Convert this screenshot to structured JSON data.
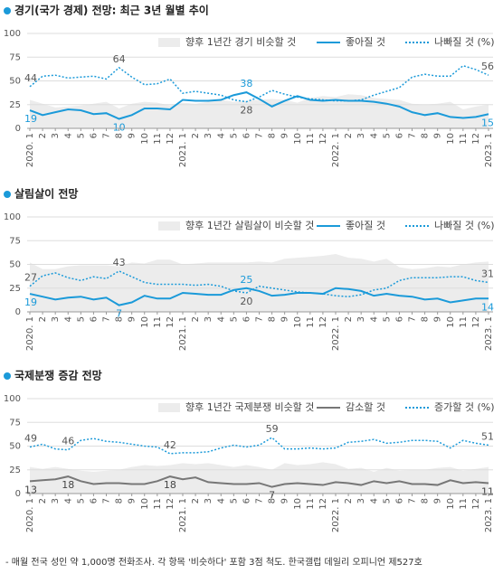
{
  "chart_data": [
    {
      "type": "line",
      "title": "경기(국가 경제) 전망:  최근 3년 월별 추이",
      "categories": [
        "2020. 1",
        "2",
        "3",
        "4",
        "5",
        "6",
        "7",
        "8",
        "9",
        "10",
        "11",
        "12",
        "2021. 1",
        "2",
        "3",
        "4",
        "5",
        "6",
        "7",
        "8",
        "9",
        "10",
        "11",
        "12",
        "2022. 1",
        "2",
        "3",
        "4",
        "5",
        "6",
        "7",
        "8",
        "9",
        "10",
        "11",
        "12",
        "2023. 1"
      ],
      "series": [
        {
          "name": "향후 1년간 경기 비슷할 것",
          "style": "area",
          "color": "#ececec",
          "values": [
            30,
            26,
            22,
            23,
            24,
            26,
            28,
            21,
            26,
            28,
            27,
            24,
            27,
            26,
            28,
            30,
            28,
            29,
            30,
            31,
            30,
            27,
            32,
            34,
            33,
            36,
            35,
            32,
            31,
            30,
            26,
            25,
            26,
            28,
            20,
            23,
            25
          ]
        },
        {
          "name": "좋아질 것",
          "style": "solid",
          "color": "#1b9ad9",
          "label_color": "#1b9ad9",
          "label_indices": [
            0,
            7,
            17,
            36
          ],
          "values": [
            19,
            14,
            17,
            20,
            19,
            15,
            16,
            10,
            14,
            21,
            21,
            20,
            30,
            29,
            29,
            30,
            35,
            38,
            31,
            23,
            29,
            34,
            30,
            29,
            30,
            29,
            29,
            28,
            26,
            23,
            17,
            14,
            16,
            12,
            11,
            12,
            15
          ]
        },
        {
          "name": "나빠질 것 (%)",
          "style": "dotted",
          "color": "#1b9ad9",
          "label_color": "#555555",
          "label_indices": [
            0,
            7,
            17,
            36
          ],
          "values": [
            44,
            55,
            56,
            53,
            54,
            55,
            52,
            64,
            54,
            46,
            47,
            52,
            37,
            39,
            37,
            35,
            30,
            28,
            33,
            40,
            36,
            33,
            31,
            30,
            29,
            29,
            30,
            35,
            39,
            43,
            54,
            57,
            55,
            55,
            66,
            62,
            56
          ]
        }
      ],
      "ylim": [
        0,
        100
      ],
      "yticks": [
        0,
        25,
        50,
        75,
        100
      ],
      "grid": true
    },
    {
      "type": "line",
      "title": "살림살이 전망",
      "categories": [
        "2020. 1",
        "2",
        "3",
        "4",
        "5",
        "6",
        "7",
        "8",
        "9",
        "10",
        "11",
        "12",
        "2021. 1",
        "2",
        "3",
        "4",
        "5",
        "6",
        "7",
        "8",
        "9",
        "10",
        "11",
        "12",
        "2022. 1",
        "2",
        "3",
        "4",
        "5",
        "6",
        "7",
        "8",
        "9",
        "10",
        "11",
        "12",
        "2023. 1"
      ],
      "series": [
        {
          "name": "향후 1년간 살림살이 비슷할 것",
          "style": "area",
          "color": "#ececec",
          "values": [
            52,
            45,
            45,
            48,
            49,
            49,
            49,
            48,
            52,
            51,
            55,
            55,
            50,
            51,
            52,
            52,
            52,
            52,
            53,
            52,
            56,
            57,
            58,
            59,
            61,
            57,
            56,
            53,
            56,
            47,
            45,
            46,
            48,
            47,
            50,
            52,
            53
          ]
        },
        {
          "name": "좋아질 것",
          "style": "solid",
          "color": "#1b9ad9",
          "label_color": "#1b9ad9",
          "label_indices": [
            0,
            7,
            17,
            36
          ],
          "values": [
            19,
            16,
            13,
            15,
            16,
            13,
            15,
            7,
            10,
            17,
            14,
            14,
            20,
            19,
            18,
            18,
            23,
            25,
            22,
            17,
            18,
            20,
            20,
            19,
            25,
            24,
            22,
            17,
            19,
            17,
            16,
            13,
            14,
            10,
            12,
            14,
            14
          ]
        },
        {
          "name": "나빠질 것 (%)",
          "style": "dotted",
          "color": "#1b9ad9",
          "label_color": "#555555",
          "label_indices": [
            0,
            7,
            17,
            36
          ],
          "values": [
            27,
            38,
            41,
            36,
            33,
            37,
            35,
            43,
            37,
            31,
            29,
            29,
            29,
            28,
            29,
            27,
            22,
            20,
            27,
            25,
            23,
            21,
            20,
            19,
            17,
            16,
            18,
            23,
            25,
            33,
            36,
            36,
            36,
            37,
            37,
            33,
            31
          ]
        }
      ],
      "ylim": [
        0,
        100
      ],
      "yticks": [
        0,
        25,
        50,
        75,
        100
      ],
      "grid": true
    },
    {
      "type": "line",
      "title": "국제분쟁 증감 전망",
      "categories": [
        "2020. 1",
        "2",
        "3",
        "4",
        "5",
        "6",
        "7",
        "8",
        "9",
        "10",
        "11",
        "12",
        "2021. 1",
        "2",
        "3",
        "4",
        "5",
        "6",
        "7",
        "8",
        "9",
        "10",
        "11",
        "12",
        "2022. 1",
        "2",
        "3",
        "4",
        "5",
        "6",
        "7",
        "8",
        "9",
        "10",
        "11",
        "12",
        "2023. 1"
      ],
      "series": [
        {
          "name": "향후 1년간 국제분쟁 비슷할 것",
          "style": "area",
          "color": "#ececec",
          "values": [
            28,
            26,
            28,
            26,
            24,
            23,
            24,
            25,
            28,
            30,
            29,
            30,
            32,
            31,
            32,
            30,
            28,
            30,
            28,
            25,
            32,
            30,
            31,
            33,
            31,
            26,
            27,
            23,
            27,
            24,
            25,
            25,
            27,
            28,
            24,
            26,
            28
          ]
        },
        {
          "name": "감소할 것",
          "style": "solid",
          "color": "#777777",
          "label_color": "#444444",
          "label_indices": [
            0,
            3,
            11,
            19,
            36
          ],
          "values": [
            13,
            14,
            15,
            18,
            13,
            10,
            11,
            11,
            10,
            10,
            13,
            18,
            15,
            17,
            12,
            11,
            10,
            10,
            11,
            7,
            10,
            11,
            10,
            9,
            12,
            11,
            9,
            13,
            11,
            13,
            10,
            10,
            9,
            14,
            11,
            12,
            11
          ]
        },
        {
          "name": "증가할 것 (%)",
          "style": "dotted",
          "color": "#1b9ad9",
          "label_color": "#555555",
          "label_indices": [
            0,
            3,
            11,
            19,
            36
          ],
          "values": [
            49,
            52,
            47,
            46,
            56,
            58,
            55,
            54,
            52,
            50,
            49,
            42,
            43,
            43,
            44,
            48,
            51,
            49,
            51,
            59,
            47,
            47,
            48,
            47,
            48,
            54,
            55,
            57,
            53,
            54,
            56,
            56,
            55,
            48,
            56,
            53,
            51
          ]
        }
      ],
      "ylim": [
        0,
        100
      ],
      "yticks": [
        0,
        25,
        50,
        75,
        100
      ],
      "grid": true
    }
  ],
  "footnote": "- 매월 전국 성인 약 1,000명 전화조사. 각 항목 '비슷하다' 포함 3점 척도. 한국갤럽 데일리 오피니언 제527호"
}
